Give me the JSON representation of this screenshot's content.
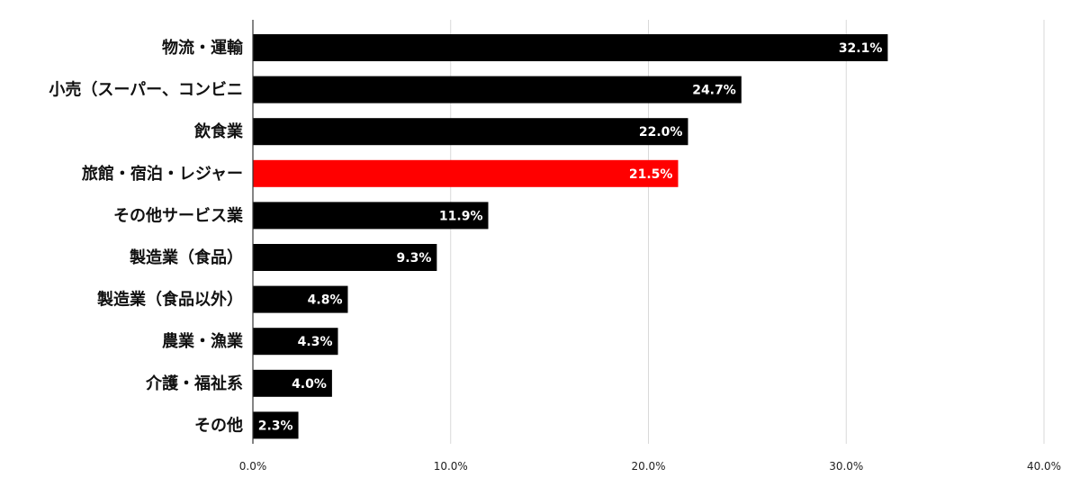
{
  "chart_data": {
    "type": "bar",
    "orientation": "horizontal",
    "categories": [
      "物流・運輸",
      "小売（スーパー、コンビニ",
      "飲食業",
      "旅館・宿泊・レジャー",
      "その他サービス業",
      "製造業（食品）",
      "製造業（食品以外）",
      "農業・漁業",
      "介護・福祉系",
      "その他"
    ],
    "values": [
      32.1,
      24.7,
      22.0,
      21.5,
      11.9,
      9.3,
      4.8,
      4.3,
      4.0,
      2.3
    ],
    "value_labels": [
      "32.1%",
      "24.7%",
      "22.0%",
      "21.5%",
      "11.9%",
      "9.3%",
      "4.8%",
      "4.3%",
      "4.0%",
      "2.3%"
    ],
    "xlim": [
      0,
      40
    ],
    "x_ticks": [
      0,
      10,
      20,
      30,
      40
    ],
    "x_tick_labels": [
      "0.0%",
      "10.0%",
      "20.0%",
      "30.0%",
      "40.0%"
    ],
    "grid": true,
    "title": "",
    "xlabel": "",
    "ylabel": "",
    "colors": {
      "default_bar": "#000000",
      "highlight_bar": "#ff0000",
      "highlight_category": "旅館・宿泊・レジャー"
    }
  }
}
